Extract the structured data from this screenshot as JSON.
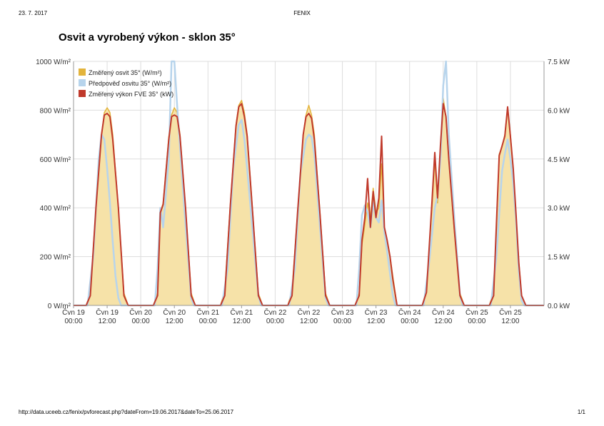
{
  "header": {
    "date": "23. 7. 2017",
    "app": "FENIX"
  },
  "footer": {
    "url": "http://data.uceeb.cz/fenix/pvforecast.php?dateFrom=19.06.2017&dateTo=25.06.2017",
    "page": "1/1"
  },
  "colors": {
    "irradiance_fill": "#f6e2a8",
    "irradiance_line": "#e3b43c",
    "forecast": "#b7d4ec",
    "power": "#c0392b",
    "grid": "#dddddd"
  },
  "chart_data": {
    "type": "area",
    "title": "Osvit a vyrobený výkon - sklon 35°",
    "x_unit": "hours from Čvn 19 00:00",
    "x_ticks": [
      {
        "day": "Čvn 19",
        "time": "00:00",
        "x": 0
      },
      {
        "day": "Čvn 19",
        "time": "12:00",
        "x": 12
      },
      {
        "day": "Čvn 20",
        "time": "00:00",
        "x": 24
      },
      {
        "day": "Čvn 20",
        "time": "12:00",
        "x": 36
      },
      {
        "day": "Čvn 21",
        "time": "00:00",
        "x": 48
      },
      {
        "day": "Čvn 21",
        "time": "12:00",
        "x": 60
      },
      {
        "day": "Čvn 22",
        "time": "00:00",
        "x": 72
      },
      {
        "day": "Čvn 22",
        "time": "12:00",
        "x": 84
      },
      {
        "day": "Čvn 23",
        "time": "00:00",
        "x": 96
      },
      {
        "day": "Čvn 23",
        "time": "12:00",
        "x": 108
      },
      {
        "day": "Čvn 24",
        "time": "00:00",
        "x": 120
      },
      {
        "day": "Čvn 24",
        "time": "12:00",
        "x": 132
      },
      {
        "day": "Čvn 25",
        "time": "00:00",
        "x": 144
      },
      {
        "day": "Čvn 25",
        "time": "12:00",
        "x": 156
      }
    ],
    "xlim": [
      0,
      168
    ],
    "y_left": {
      "ticks": [
        "0 W/m²",
        "200 W/m²",
        "400 W/m²",
        "600 W/m²",
        "800 W/m²",
        "1000 W/m²"
      ],
      "ylim": [
        0,
        1000
      ]
    },
    "y_right": {
      "ticks": [
        "0.0 kW",
        "1.5 kW",
        "3.0 kW",
        "4.5 kW",
        "6.0 kW",
        "7.5 kW"
      ],
      "ylim": [
        0,
        7.5
      ]
    },
    "grid": true,
    "legend_position": "top-left",
    "series": [
      {
        "name": "Změřený osvit 35° (W/m²)",
        "axis": "left",
        "style": "area",
        "points": [
          [
            0,
            0
          ],
          [
            4.5,
            0
          ],
          [
            6,
            50
          ],
          [
            8,
            400
          ],
          [
            10,
            700
          ],
          [
            11,
            790
          ],
          [
            12,
            810
          ],
          [
            13,
            790
          ],
          [
            14,
            700
          ],
          [
            16,
            400
          ],
          [
            18,
            50
          ],
          [
            19.5,
            0
          ],
          [
            24,
            0
          ],
          [
            28.5,
            0
          ],
          [
            30,
            50
          ],
          [
            31,
            380
          ],
          [
            32,
            420
          ],
          [
            34,
            690
          ],
          [
            35,
            780
          ],
          [
            36,
            810
          ],
          [
            37,
            790
          ],
          [
            38,
            700
          ],
          [
            40,
            400
          ],
          [
            42,
            50
          ],
          [
            43.5,
            0
          ],
          [
            48,
            0
          ],
          [
            52.5,
            0
          ],
          [
            54,
            60
          ],
          [
            56,
            420
          ],
          [
            58,
            740
          ],
          [
            59,
            820
          ],
          [
            60,
            840
          ],
          [
            61,
            790
          ],
          [
            62,
            700
          ],
          [
            64,
            380
          ],
          [
            66,
            50
          ],
          [
            67.5,
            0
          ],
          [
            72,
            0
          ],
          [
            76.5,
            0
          ],
          [
            78,
            60
          ],
          [
            80,
            380
          ],
          [
            82,
            700
          ],
          [
            83,
            780
          ],
          [
            84,
            820
          ],
          [
            85,
            780
          ],
          [
            86,
            700
          ],
          [
            88,
            380
          ],
          [
            90,
            50
          ],
          [
            91.5,
            0
          ],
          [
            96,
            0
          ],
          [
            100.5,
            0
          ],
          [
            102,
            50
          ],
          [
            103,
            250
          ],
          [
            104,
            330
          ],
          [
            105,
            420
          ],
          [
            106,
            360
          ],
          [
            107,
            480
          ],
          [
            108,
            380
          ],
          [
            109,
            400
          ],
          [
            110,
            580
          ],
          [
            111,
            320
          ],
          [
            112,
            260
          ],
          [
            113,
            200
          ],
          [
            114,
            120
          ],
          [
            115.5,
            0
          ],
          [
            120,
            0
          ],
          [
            124.5,
            0
          ],
          [
            126,
            60
          ],
          [
            128,
            400
          ],
          [
            129,
            600
          ],
          [
            130,
            420
          ],
          [
            131,
            650
          ],
          [
            132,
            850
          ],
          [
            133,
            770
          ],
          [
            134,
            600
          ],
          [
            136,
            300
          ],
          [
            138,
            50
          ],
          [
            139.5,
            0
          ],
          [
            144,
            0
          ],
          [
            148.5,
            0
          ],
          [
            150,
            60
          ],
          [
            151,
            300
          ],
          [
            152,
            620
          ],
          [
            153,
            650
          ],
          [
            154,
            700
          ],
          [
            155,
            810
          ],
          [
            156,
            700
          ],
          [
            157,
            550
          ],
          [
            158,
            350
          ],
          [
            159,
            180
          ],
          [
            160,
            40
          ],
          [
            161.5,
            0
          ],
          [
            168,
            0
          ]
        ]
      },
      {
        "name": "Předpověď osvitu 35° (W/m²)",
        "axis": "left",
        "style": "line",
        "points": [
          [
            0,
            0
          ],
          [
            5,
            0
          ],
          [
            7,
            200
          ],
          [
            9,
            600
          ],
          [
            10,
            700
          ],
          [
            11,
            680
          ],
          [
            12,
            560
          ],
          [
            13,
            420
          ],
          [
            14,
            260
          ],
          [
            15,
            120
          ],
          [
            16,
            30
          ],
          [
            17,
            0
          ],
          [
            24,
            0
          ],
          [
            29,
            0
          ],
          [
            30,
            150
          ],
          [
            31,
            400
          ],
          [
            32,
            320
          ],
          [
            34,
            600
          ],
          [
            35,
            1000
          ],
          [
            36,
            1000
          ],
          [
            37,
            820
          ],
          [
            38,
            650
          ],
          [
            40,
            330
          ],
          [
            42,
            30
          ],
          [
            43,
            0
          ],
          [
            48,
            0
          ],
          [
            53,
            0
          ],
          [
            55,
            150
          ],
          [
            57,
            560
          ],
          [
            59,
            740
          ],
          [
            60,
            760
          ],
          [
            61,
            680
          ],
          [
            62,
            560
          ],
          [
            64,
            300
          ],
          [
            66,
            40
          ],
          [
            67,
            0
          ],
          [
            72,
            0
          ],
          [
            77,
            0
          ],
          [
            79,
            150
          ],
          [
            81,
            540
          ],
          [
            83,
            680
          ],
          [
            84,
            700
          ],
          [
            85,
            690
          ],
          [
            86,
            620
          ],
          [
            88,
            320
          ],
          [
            90,
            30
          ],
          [
            91,
            0
          ],
          [
            96,
            0
          ],
          [
            101,
            0
          ],
          [
            102,
            150
          ],
          [
            103,
            370
          ],
          [
            104,
            410
          ],
          [
            105,
            380
          ],
          [
            106,
            320
          ],
          [
            107,
            420
          ],
          [
            108,
            360
          ],
          [
            109,
            340
          ],
          [
            110,
            430
          ],
          [
            111,
            300
          ],
          [
            112,
            220
          ],
          [
            113,
            130
          ],
          [
            114,
            40
          ],
          [
            115,
            0
          ],
          [
            120,
            0
          ],
          [
            125,
            0
          ],
          [
            127,
            180
          ],
          [
            129,
            400
          ],
          [
            130,
            450
          ],
          [
            131,
            600
          ],
          [
            132,
            900
          ],
          [
            133,
            1000
          ],
          [
            134,
            700
          ],
          [
            136,
            350
          ],
          [
            138,
            40
          ],
          [
            139,
            0
          ],
          [
            144,
            0
          ],
          [
            149,
            0
          ],
          [
            151,
            200
          ],
          [
            153,
            550
          ],
          [
            154,
            620
          ],
          [
            155,
            680
          ],
          [
            156,
            600
          ],
          [
            157,
            500
          ],
          [
            158,
            350
          ],
          [
            159,
            140
          ],
          [
            160,
            20
          ],
          [
            161,
            0
          ],
          [
            168,
            0
          ]
        ]
      },
      {
        "name": "Změřený výkon FVE 35° (kW)",
        "axis": "right",
        "style": "line",
        "points": [
          [
            0,
            0
          ],
          [
            4.5,
            0
          ],
          [
            6,
            0.3
          ],
          [
            8,
            3.0
          ],
          [
            10,
            5.25
          ],
          [
            11,
            5.85
          ],
          [
            12,
            5.9
          ],
          [
            13,
            5.8
          ],
          [
            14,
            5.1
          ],
          [
            16,
            3.0
          ],
          [
            18,
            0.3
          ],
          [
            19.5,
            0
          ],
          [
            24,
            0
          ],
          [
            28.5,
            0
          ],
          [
            30,
            0.3
          ],
          [
            31,
            2.85
          ],
          [
            32,
            3.1
          ],
          [
            34,
            5.1
          ],
          [
            35,
            5.8
          ],
          [
            36,
            5.85
          ],
          [
            37,
            5.8
          ],
          [
            38,
            5.2
          ],
          [
            40,
            3.0
          ],
          [
            42,
            0.3
          ],
          [
            43.5,
            0
          ],
          [
            48,
            0
          ],
          [
            52.5,
            0
          ],
          [
            54,
            0.3
          ],
          [
            56,
            3.1
          ],
          [
            58,
            5.5
          ],
          [
            59,
            6.1
          ],
          [
            60,
            6.2
          ],
          [
            61,
            5.8
          ],
          [
            62,
            5.2
          ],
          [
            64,
            2.8
          ],
          [
            66,
            0.3
          ],
          [
            67.5,
            0
          ],
          [
            72,
            0
          ],
          [
            76.5,
            0
          ],
          [
            78,
            0.3
          ],
          [
            80,
            2.85
          ],
          [
            82,
            5.25
          ],
          [
            83,
            5.8
          ],
          [
            84,
            5.9
          ],
          [
            85,
            5.75
          ],
          [
            86,
            5.1
          ],
          [
            88,
            2.8
          ],
          [
            90,
            0.3
          ],
          [
            91.5,
            0
          ],
          [
            96,
            0
          ],
          [
            100.5,
            0
          ],
          [
            102,
            0.3
          ],
          [
            103,
            2.0
          ],
          [
            104,
            2.7
          ],
          [
            105,
            3.9
          ],
          [
            106,
            2.4
          ],
          [
            107,
            3.5
          ],
          [
            108,
            2.7
          ],
          [
            109,
            3.3
          ],
          [
            110,
            5.2
          ],
          [
            111,
            2.4
          ],
          [
            112,
            2.0
          ],
          [
            113,
            1.5
          ],
          [
            114,
            0.8
          ],
          [
            115.5,
            0
          ],
          [
            120,
            0
          ],
          [
            124.5,
            0
          ],
          [
            126,
            0.4
          ],
          [
            128,
            3.2
          ],
          [
            129,
            4.7
          ],
          [
            130,
            3.3
          ],
          [
            131,
            4.9
          ],
          [
            132,
            6.2
          ],
          [
            133,
            5.8
          ],
          [
            134,
            4.5
          ],
          [
            136,
            2.3
          ],
          [
            138,
            0.3
          ],
          [
            139.5,
            0
          ],
          [
            144,
            0
          ],
          [
            148.5,
            0
          ],
          [
            150,
            0.3
          ],
          [
            151,
            2.5
          ],
          [
            152,
            4.6
          ],
          [
            153,
            4.9
          ],
          [
            154,
            5.2
          ],
          [
            155,
            6.1
          ],
          [
            156,
            5.2
          ],
          [
            157,
            4.2
          ],
          [
            158,
            2.8
          ],
          [
            159,
            1.3
          ],
          [
            160,
            0.3
          ],
          [
            161.5,
            0
          ],
          [
            168,
            0
          ]
        ]
      }
    ]
  }
}
